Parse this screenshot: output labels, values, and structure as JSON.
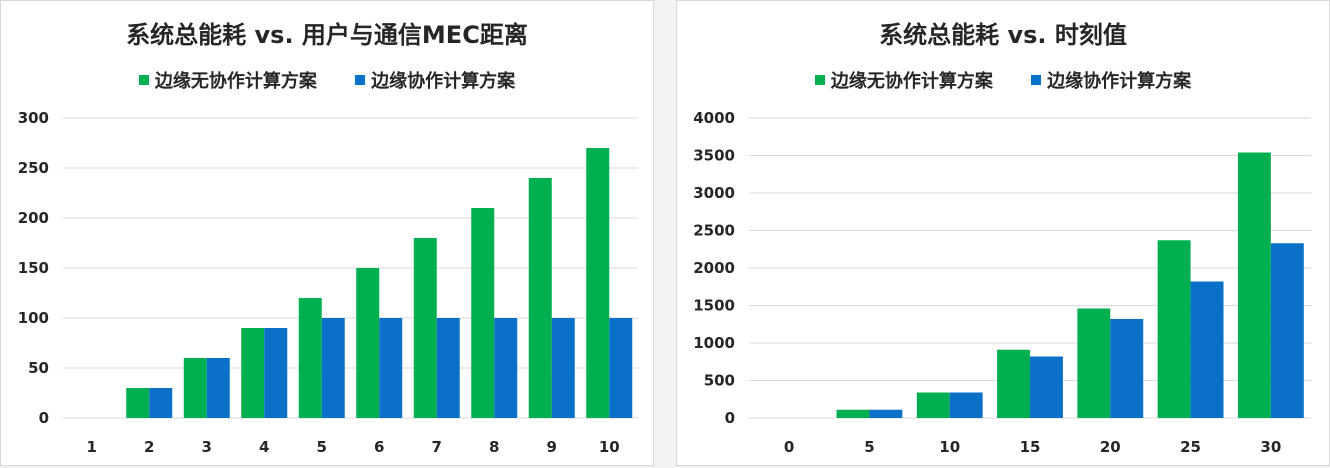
{
  "colors": {
    "series1": "#00b050",
    "series2": "#0a70c8",
    "grid": "#d9d9d9",
    "text": "#262626"
  },
  "chart_data": [
    {
      "type": "bar",
      "title": "系统总能耗 vs. 用户与通信MEC距离",
      "xlabel": "",
      "ylabel": "",
      "categories": [
        "1",
        "2",
        "3",
        "4",
        "5",
        "6",
        "7",
        "8",
        "9",
        "10"
      ],
      "series": [
        {
          "name": "边缘无协作计算方案",
          "values": [
            0,
            30,
            60,
            90,
            120,
            150,
            180,
            210,
            240,
            270
          ]
        },
        {
          "name": "边缘协作计算方案",
          "values": [
            0,
            30,
            60,
            90,
            100,
            100,
            100,
            100,
            100,
            100
          ]
        }
      ],
      "ylim": [
        0,
        300
      ],
      "yticks": [
        0,
        50,
        100,
        150,
        200,
        250,
        300
      ],
      "grid": true,
      "legend": "top"
    },
    {
      "type": "bar",
      "title": "系统总能耗 vs. 时刻值",
      "xlabel": "",
      "ylabel": "",
      "categories": [
        "0",
        "5",
        "10",
        "15",
        "20",
        "25",
        "30"
      ],
      "series": [
        {
          "name": "边缘无协作计算方案",
          "values": [
            0,
            110,
            340,
            910,
            1460,
            2370,
            3540
          ]
        },
        {
          "name": "边缘协作计算方案",
          "values": [
            0,
            110,
            340,
            820,
            1320,
            1820,
            2330
          ]
        }
      ],
      "ylim": [
        0,
        4000
      ],
      "yticks": [
        0,
        500,
        1000,
        1500,
        2000,
        2500,
        3000,
        3500,
        4000
      ],
      "grid": true,
      "legend": "top"
    }
  ]
}
